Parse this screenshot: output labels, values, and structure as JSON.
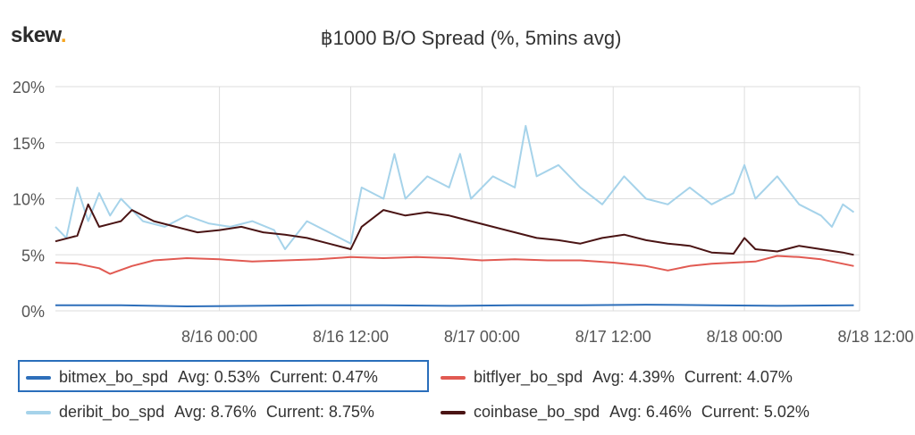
{
  "logo": {
    "text": "skew",
    "dot": "."
  },
  "colors": {
    "bitmex": "#2e6fba",
    "bitflyer": "#e15a52",
    "deribit": "#a6d3ea",
    "coinbase": "#4a1414",
    "grid": "#dddddd",
    "highlight_box": "#2a6ebb",
    "logo_dot": "#f5a623"
  },
  "chart_data": {
    "type": "line",
    "title": "฿1000 B/O Spread (%, 5mins avg)",
    "xlabel": "",
    "ylabel": "",
    "y_ticks": [
      "0%",
      "5%",
      "10%",
      "15%",
      "20%"
    ],
    "ylim": [
      0,
      20
    ],
    "x_ticks": [
      "8/16 00:00",
      "8/16 12:00",
      "8/17 00:00",
      "8/17 12:00",
      "8/18 00:00",
      "8/18 12:00"
    ],
    "x_unit": "hours since 8/15 09:00",
    "xlim": [
      0,
      73
    ],
    "x_tick_values": [
      15,
      27,
      39,
      51,
      63,
      75
    ],
    "grid": true,
    "legend_position": "bottom",
    "series": [
      {
        "name": "bitmex_bo_spd",
        "avg": "Avg: 0.53%",
        "current": "Current: 0.47%",
        "color": "#2e6fba",
        "points": [
          [
            0,
            0.5
          ],
          [
            6,
            0.5
          ],
          [
            12,
            0.4
          ],
          [
            18,
            0.45
          ],
          [
            24,
            0.5
          ],
          [
            30,
            0.5
          ],
          [
            36,
            0.45
          ],
          [
            42,
            0.5
          ],
          [
            48,
            0.5
          ],
          [
            54,
            0.55
          ],
          [
            60,
            0.5
          ],
          [
            66,
            0.45
          ],
          [
            73,
            0.5
          ]
        ]
      },
      {
        "name": "bitflyer_bo_spd",
        "avg": "Avg: 4.39%",
        "current": "Current: 4.07%",
        "color": "#e15a52",
        "points": [
          [
            0,
            4.3
          ],
          [
            2,
            4.2
          ],
          [
            4,
            3.8
          ],
          [
            5,
            3.3
          ],
          [
            7,
            4.0
          ],
          [
            9,
            4.5
          ],
          [
            12,
            4.7
          ],
          [
            15,
            4.6
          ],
          [
            18,
            4.4
          ],
          [
            21,
            4.5
          ],
          [
            24,
            4.6
          ],
          [
            27,
            4.8
          ],
          [
            30,
            4.7
          ],
          [
            33,
            4.8
          ],
          [
            36,
            4.7
          ],
          [
            39,
            4.5
          ],
          [
            42,
            4.6
          ],
          [
            45,
            4.5
          ],
          [
            48,
            4.5
          ],
          [
            51,
            4.3
          ],
          [
            54,
            4.0
          ],
          [
            56,
            3.6
          ],
          [
            58,
            4.0
          ],
          [
            60,
            4.2
          ],
          [
            62,
            4.3
          ],
          [
            64,
            4.4
          ],
          [
            66,
            4.9
          ],
          [
            68,
            4.8
          ],
          [
            70,
            4.6
          ],
          [
            72,
            4.2
          ],
          [
            73,
            4.0
          ]
        ]
      },
      {
        "name": "deribit_bo_spd",
        "avg": "Avg: 8.76%",
        "current": "Current: 8.75%",
        "color": "#a6d3ea",
        "points": [
          [
            0,
            7.5
          ],
          [
            1,
            6.5
          ],
          [
            2,
            11
          ],
          [
            3,
            8
          ],
          [
            4,
            10.5
          ],
          [
            5,
            8.5
          ],
          [
            6,
            10
          ],
          [
            8,
            8
          ],
          [
            10,
            7.5
          ],
          [
            12,
            8.5
          ],
          [
            14,
            7.8
          ],
          [
            16,
            7.5
          ],
          [
            18,
            8
          ],
          [
            20,
            7.2
          ],
          [
            21,
            5.5
          ],
          [
            23,
            8
          ],
          [
            25,
            7
          ],
          [
            27,
            6
          ],
          [
            28,
            11
          ],
          [
            30,
            10
          ],
          [
            31,
            14
          ],
          [
            32,
            10
          ],
          [
            34,
            12
          ],
          [
            36,
            11
          ],
          [
            37,
            14
          ],
          [
            38,
            10
          ],
          [
            40,
            12
          ],
          [
            42,
            11
          ],
          [
            43,
            16.5
          ],
          [
            44,
            12
          ],
          [
            46,
            13
          ],
          [
            48,
            11
          ],
          [
            50,
            9.5
          ],
          [
            52,
            12
          ],
          [
            54,
            10
          ],
          [
            56,
            9.5
          ],
          [
            58,
            11
          ],
          [
            60,
            9.5
          ],
          [
            62,
            10.5
          ],
          [
            63,
            13
          ],
          [
            64,
            10
          ],
          [
            66,
            12
          ],
          [
            68,
            9.5
          ],
          [
            70,
            8.5
          ],
          [
            71,
            7.5
          ],
          [
            72,
            9.5
          ],
          [
            73,
            8.8
          ]
        ]
      },
      {
        "name": "coinbase_bo_spd",
        "avg": "Avg: 6.46%",
        "current": "Current: 5.02%",
        "color": "#4a1414",
        "points": [
          [
            0,
            6.2
          ],
          [
            2,
            6.7
          ],
          [
            3,
            9.5
          ],
          [
            4,
            7.5
          ],
          [
            6,
            8
          ],
          [
            7,
            9
          ],
          [
            9,
            8
          ],
          [
            11,
            7.5
          ],
          [
            13,
            7
          ],
          [
            15,
            7.2
          ],
          [
            17,
            7.5
          ],
          [
            19,
            7
          ],
          [
            21,
            6.8
          ],
          [
            23,
            6.5
          ],
          [
            25,
            6
          ],
          [
            27,
            5.5
          ],
          [
            28,
            7.5
          ],
          [
            30,
            9
          ],
          [
            32,
            8.5
          ],
          [
            34,
            8.8
          ],
          [
            36,
            8.5
          ],
          [
            38,
            8
          ],
          [
            40,
            7.5
          ],
          [
            42,
            7
          ],
          [
            44,
            6.5
          ],
          [
            46,
            6.3
          ],
          [
            48,
            6
          ],
          [
            50,
            6.5
          ],
          [
            52,
            6.8
          ],
          [
            54,
            6.3
          ],
          [
            56,
            6
          ],
          [
            58,
            5.8
          ],
          [
            60,
            5.2
          ],
          [
            62,
            5.1
          ],
          [
            63,
            6.5
          ],
          [
            64,
            5.5
          ],
          [
            66,
            5.3
          ],
          [
            68,
            5.8
          ],
          [
            70,
            5.5
          ],
          [
            72,
            5.2
          ],
          [
            73,
            5.0
          ]
        ]
      }
    ]
  }
}
